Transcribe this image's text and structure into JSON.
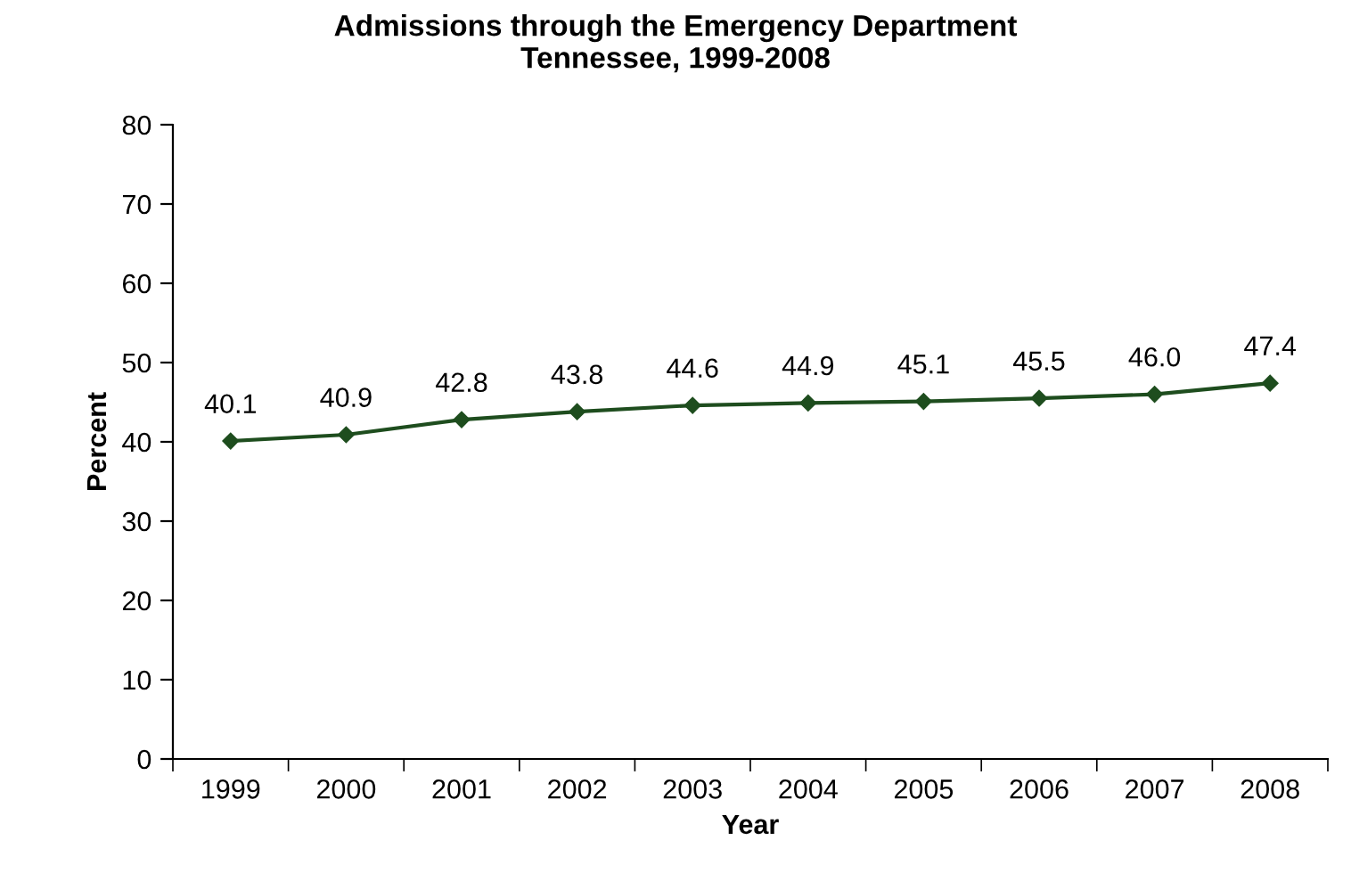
{
  "chart_data": {
    "type": "line",
    "title": "Admissions through the Emergency Department\nTennessee, 1999-2008",
    "xlabel": "Year",
    "ylabel": "Percent",
    "categories": [
      "1999",
      "2000",
      "2001",
      "2002",
      "2003",
      "2004",
      "2005",
      "2006",
      "2007",
      "2008"
    ],
    "series": [
      {
        "color": "#1e4d1e",
        "values": [
          40.1,
          40.9,
          42.8,
          43.8,
          44.6,
          44.9,
          45.1,
          45.5,
          46.0,
          47.4
        ],
        "value_labels": [
          "40.1",
          "40.9",
          "42.8",
          "43.8",
          "44.6",
          "44.9",
          "45.1",
          "45.5",
          "46.0",
          "47.4"
        ]
      }
    ],
    "ylim": [
      0,
      80
    ],
    "yticks": [
      0,
      10,
      20,
      30,
      40,
      50,
      60,
      70,
      80
    ],
    "grid": false,
    "legend": false,
    "marker": "diamond",
    "line_style": "solid"
  }
}
